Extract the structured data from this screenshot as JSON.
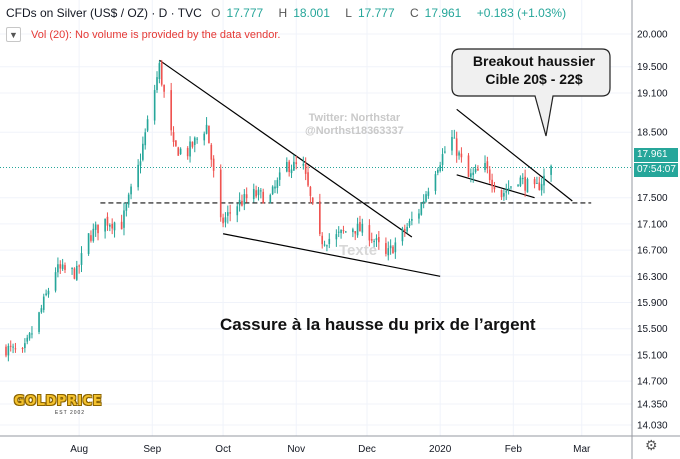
{
  "header": {
    "symbol": "CFDs on Silver (US$ / OZ) · D · TVC",
    "ohlc": [
      {
        "label": "O",
        "value": "17.777"
      },
      {
        "label": "H",
        "value": "18.001"
      },
      {
        "label": "L",
        "value": "17.777"
      },
      {
        "label": "C",
        "value": "17.961"
      }
    ],
    "change": "+0.183 (+1.03%)"
  },
  "volume_notice": {
    "chevron_icon": "chevron-down-icon",
    "text": "Vol (20): No volume is provided by the data vendor."
  },
  "annotations": {
    "callout_line1": "Breakout haussier",
    "callout_line2": "Cible 20$ - 22$",
    "watermark_line1": "Twitter: Northstar",
    "watermark_line2": "@Northst18363337",
    "texte": "Texte",
    "headline": "Cassure à la hausse du prix de l’argent"
  },
  "logo": {
    "name": "GOLDPRICE",
    "est": "EST 2002"
  },
  "price_scale": {
    "current_price": "17.961",
    "countdown": "07:54:07"
  },
  "colors": {
    "up": "#26a69a",
    "down": "#ef5350",
    "last_price_line": "#26a69a",
    "grid": "#f0f3fa",
    "trendline": "#000000"
  },
  "settings_icon": "gear-icon",
  "chart_data": {
    "type": "candlestick",
    "title": "CFDs on Silver (US$ / OZ)",
    "x_ticks": [
      "Aug",
      "Sep",
      "Oct",
      "Nov",
      "Dec",
      "2020",
      "Feb",
      "Mar"
    ],
    "y_ticks": [
      "20.000",
      "19.500",
      "19.100",
      "18.500",
      "17.961",
      "17.500",
      "17.100",
      "16.700",
      "16.300",
      "15.900",
      "15.500",
      "15.100",
      "14.700",
      "14.350",
      "14.030"
    ],
    "ylim": [
      14.03,
      20.0
    ],
    "last_price": 17.961,
    "support_level": 17.42,
    "grid": true,
    "trendlines": [
      {
        "name": "resistance-1",
        "from": {
          "date": "2019-09-04",
          "price": 19.6
        },
        "to": {
          "date": "2019-12-20",
          "price": 16.9
        }
      },
      {
        "name": "support-1",
        "from": {
          "date": "2019-10-01",
          "price": 16.95
        },
        "to": {
          "date": "2020-01-01",
          "price": 16.3
        }
      },
      {
        "name": "resistance-2",
        "from": {
          "date": "2020-01-08",
          "price": 18.85
        },
        "to": {
          "date": "2020-02-26",
          "price": 17.45
        }
      },
      {
        "name": "support-2",
        "from": {
          "date": "2020-01-08",
          "price": 17.85
        },
        "to": {
          "date": "2020-02-10",
          "price": 17.5
        }
      }
    ],
    "close_path": [
      {
        "date": "2019-07-01",
        "close": 15.2
      },
      {
        "date": "2019-07-08",
        "close": 15.1
      },
      {
        "date": "2019-07-15",
        "close": 15.7
      },
      {
        "date": "2019-07-22",
        "close": 16.4
      },
      {
        "date": "2019-07-31",
        "close": 16.35
      },
      {
        "date": "2019-08-05",
        "close": 16.9
      },
      {
        "date": "2019-08-12",
        "close": 17.15
      },
      {
        "date": "2019-08-19",
        "close": 17.1
      },
      {
        "date": "2019-08-26",
        "close": 17.95
      },
      {
        "date": "2019-09-04",
        "close": 19.5
      },
      {
        "date": "2019-09-10",
        "close": 18.25
      },
      {
        "date": "2019-09-16",
        "close": 18.2
      },
      {
        "date": "2019-09-24",
        "close": 18.6
      },
      {
        "date": "2019-09-30",
        "close": 17.1
      },
      {
        "date": "2019-10-07",
        "close": 17.4
      },
      {
        "date": "2019-10-14",
        "close": 17.55
      },
      {
        "date": "2019-10-21",
        "close": 17.5
      },
      {
        "date": "2019-10-28",
        "close": 18.0
      },
      {
        "date": "2019-11-04",
        "close": 17.95
      },
      {
        "date": "2019-11-11",
        "close": 16.85
      },
      {
        "date": "2019-11-18",
        "close": 16.9
      },
      {
        "date": "2019-11-25",
        "close": 17.05
      },
      {
        "date": "2019-12-02",
        "close": 16.95
      },
      {
        "date": "2019-12-09",
        "close": 16.6
      },
      {
        "date": "2019-12-16",
        "close": 16.95
      },
      {
        "date": "2019-12-23",
        "close": 17.3
      },
      {
        "date": "2019-12-30",
        "close": 17.95
      },
      {
        "date": "2020-01-06",
        "close": 18.4
      },
      {
        "date": "2020-01-13",
        "close": 17.8
      },
      {
        "date": "2020-01-20",
        "close": 17.95
      },
      {
        "date": "2020-01-27",
        "close": 17.55
      },
      {
        "date": "2020-02-03",
        "close": 17.8
      },
      {
        "date": "2020-02-10",
        "close": 17.6
      },
      {
        "date": "2020-02-17",
        "close": 17.961
      }
    ]
  }
}
